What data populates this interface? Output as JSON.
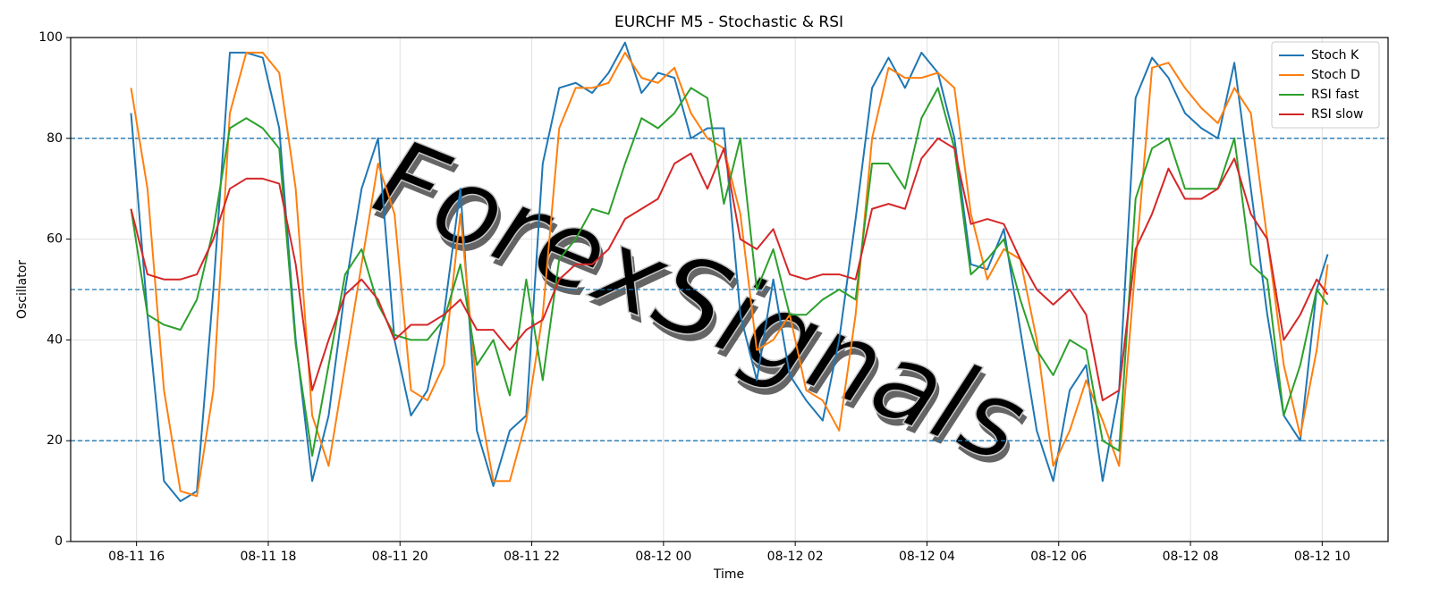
{
  "chart_data": {
    "type": "line",
    "title": "EURCHF M5 - Stochastic & RSI",
    "xlabel": "Time",
    "ylabel": "Oscillator",
    "watermark": "ForexSignals",
    "x": [
      "08-11 15:55",
      "08-11 16:10",
      "08-11 16:25",
      "08-11 16:40",
      "08-11 16:55",
      "08-11 17:10",
      "08-11 17:25",
      "08-11 17:40",
      "08-11 17:55",
      "08-11 18:10",
      "08-11 18:25",
      "08-11 18:40",
      "08-11 18:55",
      "08-11 19:10",
      "08-11 19:25",
      "08-11 19:40",
      "08-11 19:55",
      "08-11 20:10",
      "08-11 20:25",
      "08-11 20:40",
      "08-11 20:55",
      "08-11 21:10",
      "08-11 21:25",
      "08-11 21:40",
      "08-11 21:55",
      "08-11 22:10",
      "08-11 22:25",
      "08-11 22:40",
      "08-11 22:55",
      "08-11 23:10",
      "08-11 23:25",
      "08-11 23:40",
      "08-11 23:55",
      "08-12 00:10",
      "08-12 00:25",
      "08-12 00:40",
      "08-12 00:55",
      "08-12 01:10",
      "08-12 01:25",
      "08-12 01:40",
      "08-12 01:55",
      "08-12 02:10",
      "08-12 02:25",
      "08-12 02:40",
      "08-12 02:55",
      "08-12 03:10",
      "08-12 03:25",
      "08-12 03:40",
      "08-12 03:55",
      "08-12 04:10",
      "08-12 04:25",
      "08-12 04:40",
      "08-12 04:55",
      "08-12 05:10",
      "08-12 05:25",
      "08-12 05:40",
      "08-12 05:55",
      "08-12 06:10",
      "08-12 06:25",
      "08-12 06:40",
      "08-12 06:55",
      "08-12 07:10",
      "08-12 07:25",
      "08-12 07:40",
      "08-12 07:55",
      "08-12 08:10",
      "08-12 08:25",
      "08-12 08:40",
      "08-12 08:55",
      "08-12 09:10",
      "08-12 09:25",
      "08-12 09:40",
      "08-12 09:55",
      "08-12 10:05"
    ],
    "series": [
      {
        "name": "Stoch K",
        "color": "#1f77b4",
        "values": [
          85,
          45,
          12,
          8,
          10,
          50,
          97,
          97,
          96,
          82,
          40,
          12,
          25,
          50,
          70,
          80,
          40,
          25,
          30,
          45,
          70,
          22,
          11,
          22,
          25,
          75,
          90,
          91,
          89,
          93,
          99,
          89,
          93,
          92,
          80,
          82,
          82,
          45,
          32,
          52,
          33,
          28,
          24,
          40,
          64,
          90,
          96,
          90,
          97,
          93,
          80,
          55,
          54,
          62,
          42,
          22,
          12,
          30,
          35,
          12,
          30,
          88,
          96,
          92,
          85,
          82,
          80,
          95,
          70,
          45,
          25,
          20,
          50,
          57
        ]
      },
      {
        "name": "Stoch D",
        "color": "#ff7f0e",
        "values": [
          90,
          70,
          30,
          10,
          9,
          30,
          85,
          97,
          97,
          93,
          70,
          25,
          15,
          35,
          55,
          75,
          65,
          30,
          28,
          35,
          65,
          30,
          12,
          12,
          24,
          45,
          82,
          90,
          90,
          91,
          97,
          92,
          91,
          94,
          85,
          80,
          78,
          65,
          38,
          40,
          45,
          30,
          28,
          22,
          45,
          80,
          94,
          92,
          92,
          93,
          90,
          65,
          52,
          58,
          56,
          40,
          15,
          22,
          32,
          24,
          15,
          55,
          94,
          95,
          90,
          86,
          83,
          90,
          85,
          60,
          35,
          21,
          38,
          55
        ]
      },
      {
        "name": "RSI fast",
        "color": "#2ca02c",
        "values": [
          66,
          45,
          43,
          42,
          48,
          62,
          82,
          84,
          82,
          78,
          39,
          17,
          35,
          53,
          58,
          47,
          41,
          40,
          40,
          44,
          55,
          35,
          40,
          29,
          52,
          32,
          56,
          60,
          66,
          65,
          75,
          84,
          82,
          85,
          90,
          88,
          67,
          80,
          50,
          58,
          45,
          45,
          48,
          50,
          48,
          75,
          75,
          70,
          84,
          90,
          78,
          53,
          56,
          60,
          48,
          38,
          33,
          40,
          38,
          20,
          18,
          68,
          78,
          80,
          70,
          70,
          70,
          80,
          55,
          52,
          25,
          35,
          50,
          47
        ]
      },
      {
        "name": "RSI slow",
        "color": "#d62728",
        "values": [
          66,
          53,
          52,
          52,
          53,
          60,
          70,
          72,
          72,
          71,
          55,
          30,
          40,
          49,
          52,
          48,
          40,
          43,
          43,
          45,
          48,
          42,
          42,
          38,
          42,
          44,
          52,
          55,
          55,
          58,
          64,
          66,
          68,
          75,
          77,
          70,
          78,
          60,
          58,
          62,
          53,
          52,
          53,
          53,
          52,
          66,
          67,
          66,
          76,
          80,
          78,
          63,
          64,
          63,
          56,
          50,
          47,
          50,
          45,
          28,
          30,
          58,
          65,
          74,
          68,
          68,
          70,
          76,
          65,
          60,
          40,
          45,
          52,
          49
        ]
      }
    ],
    "hlines": [
      80,
      50,
      20
    ],
    "hline_color": "#1f77b4",
    "xlim": [
      "08-11 15:00",
      "08-12 11:00"
    ],
    "xticks": [
      {
        "value": "08-11 16:00",
        "label": "08-11 16"
      },
      {
        "value": "08-11 18:00",
        "label": "08-11 18"
      },
      {
        "value": "08-11 20:00",
        "label": "08-11 20"
      },
      {
        "value": "08-11 22:00",
        "label": "08-11 22"
      },
      {
        "value": "08-12 00:00",
        "label": "08-12 00"
      },
      {
        "value": "08-12 02:00",
        "label": "08-12 02"
      },
      {
        "value": "08-12 04:00",
        "label": "08-12 04"
      },
      {
        "value": "08-12 06:00",
        "label": "08-12 06"
      },
      {
        "value": "08-12 08:00",
        "label": "08-12 08"
      },
      {
        "value": "08-12 10:00",
        "label": "08-12 10"
      }
    ],
    "ylim": [
      0,
      100
    ],
    "yticks": [
      0,
      20,
      40,
      60,
      80,
      100
    ],
    "grid": true,
    "legend": "upper right"
  }
}
